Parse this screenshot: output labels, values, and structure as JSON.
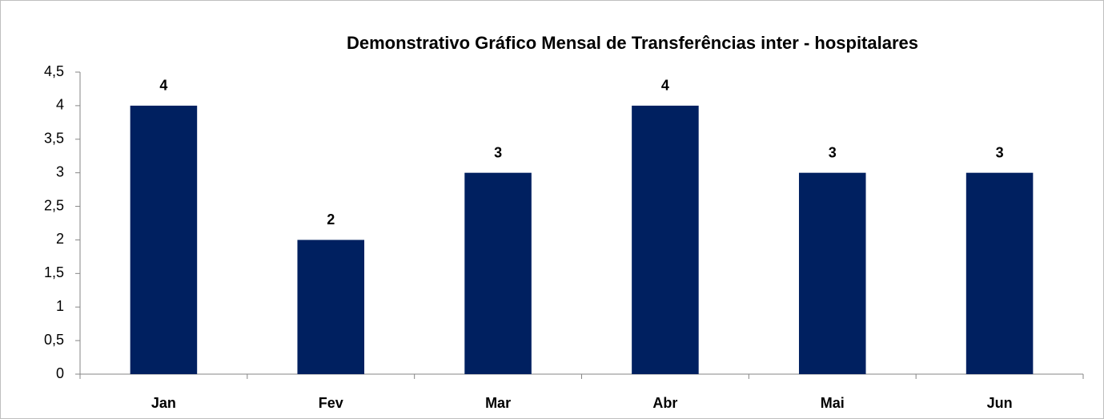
{
  "chart_data": {
    "type": "bar",
    "title": "Demonstrativo Gráfico Mensal de Transferências inter - hospitalares",
    "categories": [
      "Jan",
      "Fev",
      "Mar",
      "Abr",
      "Mai",
      "Jun"
    ],
    "values": [
      4,
      2,
      3,
      4,
      3,
      3
    ],
    "color": "#002060",
    "ylim": [
      0,
      4.5
    ],
    "yticks": [
      0,
      {
        "value": 0.5,
        "label": "0,5"
      },
      1,
      {
        "value": 1.5,
        "label": "1,5"
      },
      2,
      {
        "value": 2.5,
        "label": "2,5"
      },
      3,
      {
        "value": 3.5,
        "label": "3,5"
      },
      4,
      {
        "value": 4.5,
        "label": "4,5"
      }
    ],
    "grid": false
  }
}
